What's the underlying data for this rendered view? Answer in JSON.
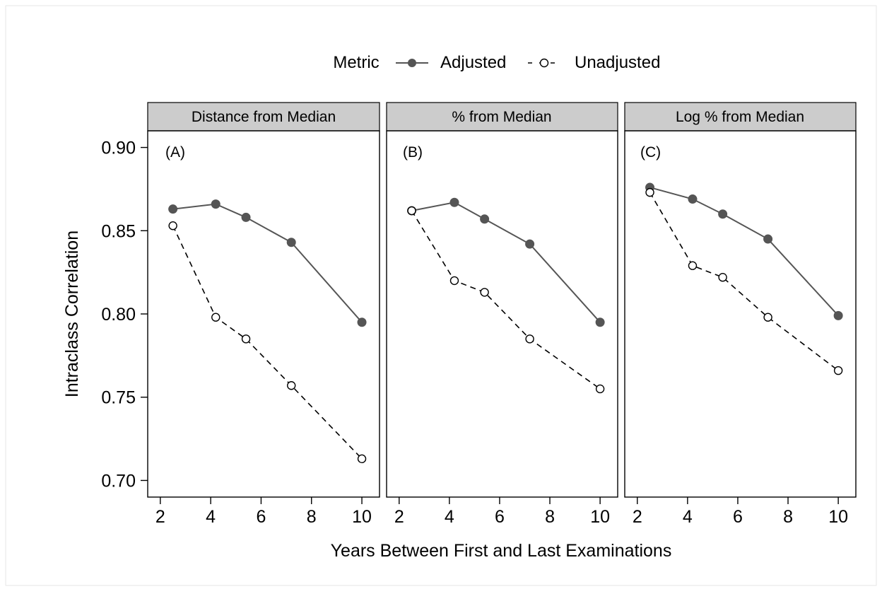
{
  "legend": {
    "title": "Metric",
    "items": [
      {
        "label": "Adjusted",
        "marker": "filled-circle",
        "line": "solid"
      },
      {
        "label": "Unadjusted",
        "marker": "open-circle",
        "line": "dashed"
      }
    ],
    "position": "top-center"
  },
  "chart_data": {
    "type": "line",
    "xlabel": "Years Between First and Last Examinations",
    "ylabel": "Intraclass Correlation",
    "xlim": [
      1.5,
      10.7
    ],
    "ylim": [
      0.69,
      0.91
    ],
    "xticks": [
      2,
      4,
      6,
      8,
      10
    ],
    "yticks": [
      0.7,
      0.75,
      0.8,
      0.85,
      0.9
    ],
    "ytick_labels": [
      "0.70",
      "0.75",
      "0.80",
      "0.85",
      "0.90"
    ],
    "grid": false,
    "colors": {
      "line": "#555555",
      "marker_fill": "#555555",
      "strip": "#cccccc",
      "frame": "#000000"
    },
    "x": [
      2.5,
      4.2,
      5.4,
      7.2,
      10.0
    ],
    "panels": [
      {
        "strip": "Distance from Median",
        "label": "(A)",
        "series": [
          {
            "name": "Adjusted",
            "values": [
              0.863,
              0.866,
              0.858,
              0.843,
              0.795
            ]
          },
          {
            "name": "Unadjusted",
            "values": [
              0.853,
              0.798,
              0.785,
              0.757,
              0.713
            ]
          }
        ]
      },
      {
        "strip": "% from Median",
        "label": "(B)",
        "series": [
          {
            "name": "Adjusted",
            "values": [
              0.862,
              0.867,
              0.857,
              0.842,
              0.795
            ]
          },
          {
            "name": "Unadjusted",
            "values": [
              0.862,
              0.82,
              0.813,
              0.785,
              0.755
            ]
          }
        ]
      },
      {
        "strip": "Log % from Median",
        "label": "(C)",
        "series": [
          {
            "name": "Adjusted",
            "values": [
              0.876,
              0.869,
              0.86,
              0.845,
              0.799
            ]
          },
          {
            "name": "Unadjusted",
            "values": [
              0.873,
              0.829,
              0.822,
              0.798,
              0.766
            ]
          }
        ]
      }
    ]
  }
}
